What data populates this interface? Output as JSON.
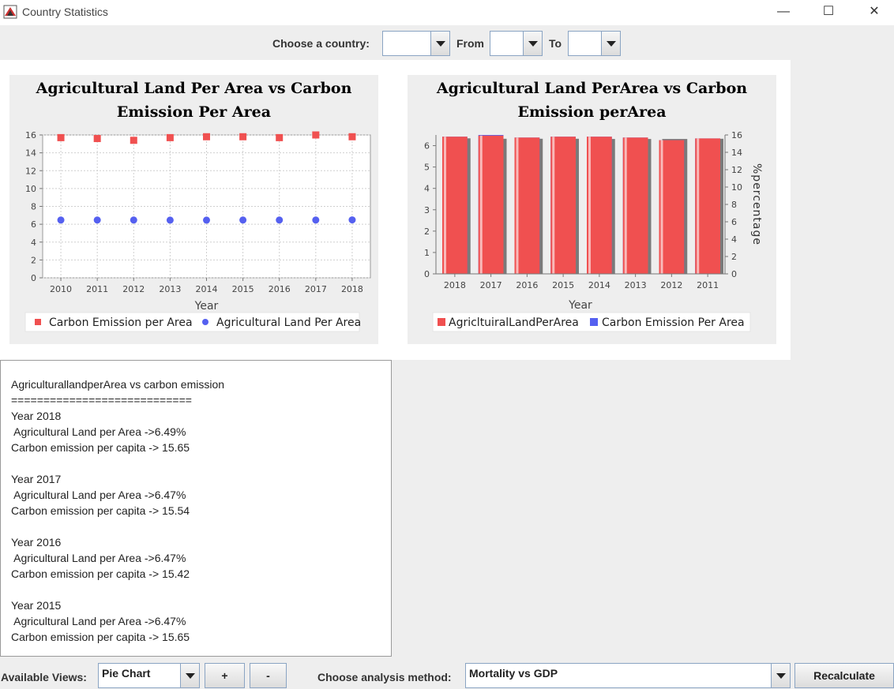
{
  "window": {
    "title": "Country Statistics",
    "minimize_glyph": "—",
    "maximize_glyph": "☐",
    "close_glyph": "✕"
  },
  "toolbar": {
    "country_label": "Choose a country:",
    "country_value": "",
    "from_label": "From",
    "from_value": "",
    "to_label": "To",
    "to_value": ""
  },
  "chart_data": [
    {
      "type": "scatter",
      "title_line1": "Agricultural Land Per Area vs Carbon",
      "title_line2": "Emission Per Area",
      "xlabel": "Year",
      "ylabel": "",
      "categories": [
        "2010",
        "2011",
        "2012",
        "2013",
        "2014",
        "2015",
        "2016",
        "2017",
        "2018"
      ],
      "ylim": [
        0,
        16
      ],
      "yticks": [
        0,
        2,
        4,
        6,
        8,
        10,
        12,
        14,
        16
      ],
      "grid": true,
      "legend_position": "bottom",
      "series": [
        {
          "name": "Carbon Emission per Area",
          "marker": "square",
          "color": "#f05050",
          "values": [
            15.7,
            15.6,
            15.4,
            15.7,
            15.8,
            15.8,
            15.7,
            16.0,
            15.8
          ]
        },
        {
          "name": "Agricultural Land Per Area",
          "marker": "circle",
          "color": "#5560f0",
          "values": [
            6.47,
            6.47,
            6.47,
            6.46,
            6.46,
            6.47,
            6.47,
            6.47,
            6.49
          ]
        }
      ]
    },
    {
      "type": "bar",
      "title_line1": "Agricultural Land PerArea vs Carbon",
      "title_line2": "Emission perArea",
      "xlabel": "Year",
      "y2label": "%percentage",
      "categories": [
        "2018",
        "2017",
        "2016",
        "2015",
        "2014",
        "2013",
        "2012",
        "2011"
      ],
      "ylim": [
        0,
        6.5
      ],
      "yticks": [
        0,
        1,
        2,
        3,
        4,
        5,
        6
      ],
      "y2lim": [
        0,
        16
      ],
      "y2ticks": [
        0,
        2,
        4,
        6,
        8,
        10,
        12,
        14,
        16
      ],
      "legend_position": "bottom",
      "series": [
        {
          "name": "AgricltuiralLandPerArea",
          "color": "#f05050",
          "axis": "left",
          "values": [
            6.49,
            6.47,
            6.47,
            6.47,
            6.46,
            6.46,
            6.46,
            6.47
          ]
        },
        {
          "name": "Carbon Emission Per Area",
          "color": "#5560f0",
          "axis": "right",
          "values": [
            15.8,
            16.0,
            15.7,
            15.8,
            15.8,
            15.7,
            15.4,
            15.6
          ]
        }
      ]
    }
  ],
  "report": {
    "lines": [
      "AgriculturallandperArea vs carbon emission",
      "============================",
      "Year 2018",
      " Agricultural Land per Area ->6.49%",
      "Carbon emission per capita -> 15.65",
      "",
      "Year 2017",
      " Agricultural Land per Area ->6.47%",
      "Carbon emission per capita -> 15.54",
      "",
      "Year 2016",
      " Agricultural Land per Area ->6.47%",
      "Carbon emission per capita -> 15.42",
      "",
      "Year 2015",
      " Agricultural Land per Area ->6.47%",
      "Carbon emission per capita -> 15.65"
    ]
  },
  "bottom_bar": {
    "views_label": "Available Views:",
    "views_value": "Pie Chart",
    "plus_label": "+",
    "minus_label": "-",
    "method_label": "Choose analysis method:",
    "method_value": "Mortality vs GDP",
    "recalculate_label": "Recalculate"
  }
}
